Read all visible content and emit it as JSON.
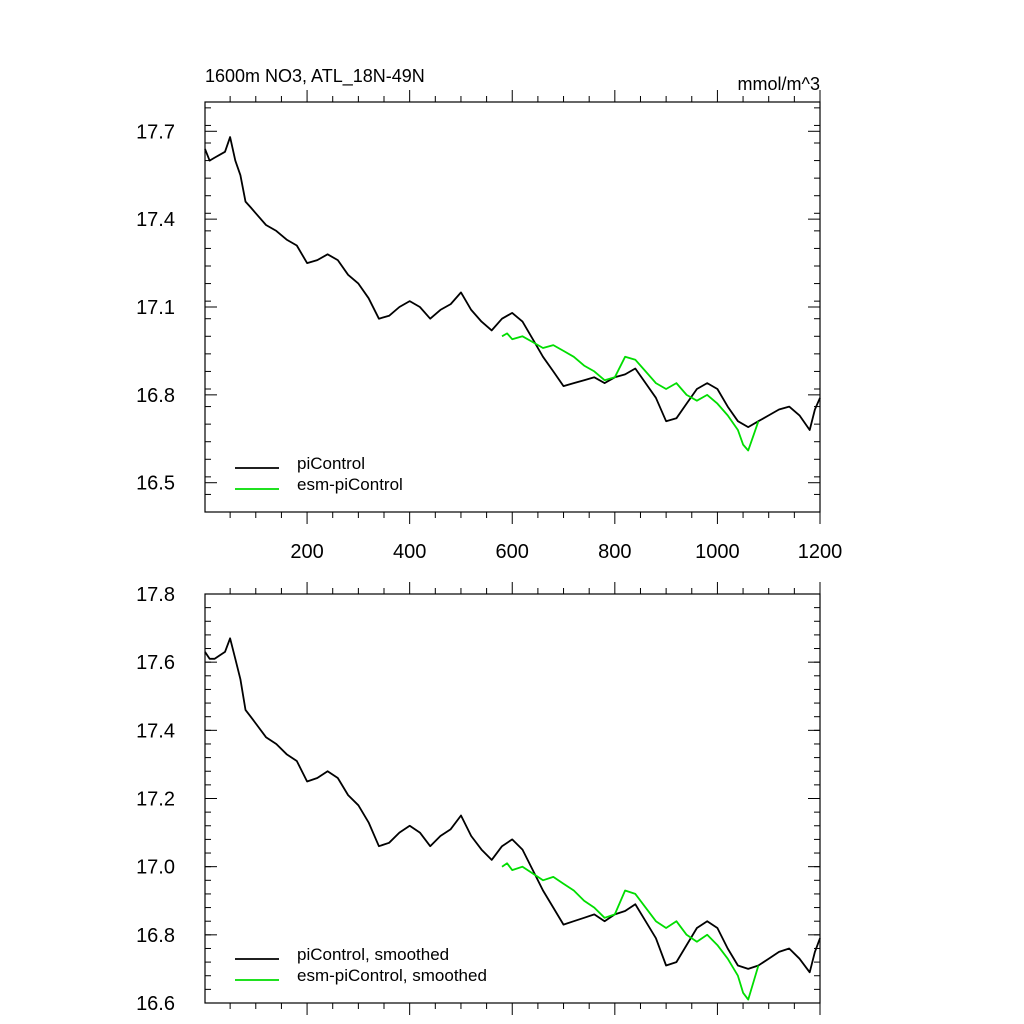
{
  "chart_data": [
    {
      "type": "line",
      "title": "1600m NO3, ATL_18N-49N",
      "units_label": "mmol/m^3",
      "xlabel": "",
      "ylabel": "",
      "xlim": [
        1,
        1200
      ],
      "ylim": [
        16.4,
        17.8
      ],
      "yticks": [
        16.5,
        16.8,
        17.1,
        17.4,
        17.7
      ],
      "ytick_labels": [
        "16.5",
        "16.8",
        "17.1",
        "17.4",
        "17.7"
      ],
      "xticks": [
        200,
        400,
        600,
        800,
        1000,
        1200
      ],
      "xtick_labels": [
        "200",
        "400",
        "600",
        "800",
        "1000",
        "1200"
      ],
      "legend_position": "bottom-left",
      "series": [
        {
          "name": "piControl",
          "color": "#000000",
          "x": [
            1,
            10,
            20,
            30,
            40,
            50,
            60,
            70,
            80,
            90,
            100,
            120,
            140,
            160,
            180,
            200,
            220,
            240,
            260,
            280,
            300,
            320,
            340,
            360,
            380,
            400,
            420,
            440,
            460,
            480,
            500,
            520,
            540,
            560,
            580,
            600,
            620,
            640,
            660,
            680,
            700,
            720,
            740,
            760,
            780,
            800,
            820,
            840,
            860,
            880,
            900,
            920,
            940,
            960,
            980,
            1000,
            1020,
            1040,
            1060,
            1080,
            1100,
            1120,
            1140,
            1160,
            1180,
            1190,
            1200
          ],
          "y": [
            17.64,
            17.6,
            17.61,
            17.62,
            17.63,
            17.68,
            17.6,
            17.55,
            17.46,
            17.44,
            17.42,
            17.38,
            17.36,
            17.33,
            17.31,
            17.25,
            17.26,
            17.28,
            17.26,
            17.21,
            17.18,
            17.13,
            17.06,
            17.07,
            17.1,
            17.12,
            17.1,
            17.06,
            17.09,
            17.11,
            17.15,
            17.09,
            17.05,
            17.02,
            17.06,
            17.08,
            17.05,
            16.99,
            16.93,
            16.88,
            16.83,
            16.84,
            16.85,
            16.86,
            16.84,
            16.86,
            16.87,
            16.89,
            16.84,
            16.79,
            16.71,
            16.72,
            16.77,
            16.82,
            16.84,
            16.82,
            16.76,
            16.71,
            16.69,
            16.71,
            16.73,
            16.75,
            16.76,
            16.73,
            16.68,
            16.75,
            16.79
          ]
        },
        {
          "name": "esm-piControl",
          "color": "#00dd00",
          "x": [
            580,
            590,
            600,
            620,
            640,
            660,
            680,
            700,
            720,
            740,
            760,
            780,
            800,
            820,
            840,
            860,
            880,
            900,
            920,
            940,
            960,
            980,
            1000,
            1020,
            1040,
            1050,
            1060,
            1070,
            1080
          ],
          "y": [
            17.0,
            17.01,
            16.99,
            17.0,
            16.98,
            16.96,
            16.97,
            16.95,
            16.93,
            16.9,
            16.88,
            16.85,
            16.86,
            16.93,
            16.92,
            16.88,
            16.84,
            16.82,
            16.84,
            16.8,
            16.78,
            16.8,
            16.77,
            16.73,
            16.68,
            16.63,
            16.61,
            16.66,
            16.71
          ]
        }
      ]
    },
    {
      "type": "line",
      "title": "",
      "xlabel": "",
      "ylabel": "",
      "xlim": [
        1,
        1200
      ],
      "ylim": [
        16.6,
        17.8
      ],
      "yticks": [
        16.6,
        16.8,
        17.0,
        17.2,
        17.4,
        17.6,
        17.8
      ],
      "ytick_labels": [
        "16.6",
        "16.8",
        "17.0",
        "17.2",
        "17.4",
        "17.6",
        "17.8"
      ],
      "xticks": [
        200,
        400,
        600,
        800,
        1000,
        1200
      ],
      "xtick_labels": [],
      "legend_position": "bottom-left",
      "series": [
        {
          "name": "piControl, smoothed",
          "color": "#000000",
          "x": [
            1,
            10,
            20,
            30,
            40,
            50,
            60,
            70,
            80,
            90,
            100,
            120,
            140,
            160,
            180,
            200,
            220,
            240,
            260,
            280,
            300,
            320,
            340,
            360,
            380,
            400,
            420,
            440,
            460,
            480,
            500,
            520,
            540,
            560,
            580,
            600,
            620,
            640,
            660,
            680,
            700,
            720,
            740,
            760,
            780,
            800,
            820,
            840,
            860,
            880,
            900,
            920,
            940,
            960,
            980,
            1000,
            1020,
            1040,
            1060,
            1080,
            1100,
            1120,
            1140,
            1160,
            1180,
            1190,
            1200
          ],
          "y": [
            17.63,
            17.61,
            17.61,
            17.62,
            17.63,
            17.67,
            17.61,
            17.55,
            17.46,
            17.44,
            17.42,
            17.38,
            17.36,
            17.33,
            17.31,
            17.25,
            17.26,
            17.28,
            17.26,
            17.21,
            17.18,
            17.13,
            17.06,
            17.07,
            17.1,
            17.12,
            17.1,
            17.06,
            17.09,
            17.11,
            17.15,
            17.09,
            17.05,
            17.02,
            17.06,
            17.08,
            17.05,
            16.99,
            16.93,
            16.88,
            16.83,
            16.84,
            16.85,
            16.86,
            16.84,
            16.86,
            16.87,
            16.89,
            16.84,
            16.79,
            16.71,
            16.72,
            16.77,
            16.82,
            16.84,
            16.82,
            16.76,
            16.71,
            16.7,
            16.71,
            16.73,
            16.75,
            16.76,
            16.73,
            16.69,
            16.75,
            16.79
          ]
        },
        {
          "name": "esm-piControl, smoothed",
          "color": "#00dd00",
          "x": [
            580,
            590,
            600,
            620,
            640,
            660,
            680,
            700,
            720,
            740,
            760,
            780,
            800,
            820,
            840,
            860,
            880,
            900,
            920,
            940,
            960,
            980,
            1000,
            1020,
            1040,
            1050,
            1060,
            1070,
            1080
          ],
          "y": [
            17.0,
            17.01,
            16.99,
            17.0,
            16.98,
            16.96,
            16.97,
            16.95,
            16.93,
            16.9,
            16.88,
            16.85,
            16.86,
            16.93,
            16.92,
            16.88,
            16.84,
            16.82,
            16.84,
            16.8,
            16.78,
            16.8,
            16.77,
            16.73,
            16.68,
            16.63,
            16.61,
            16.66,
            16.71
          ]
        }
      ]
    }
  ]
}
